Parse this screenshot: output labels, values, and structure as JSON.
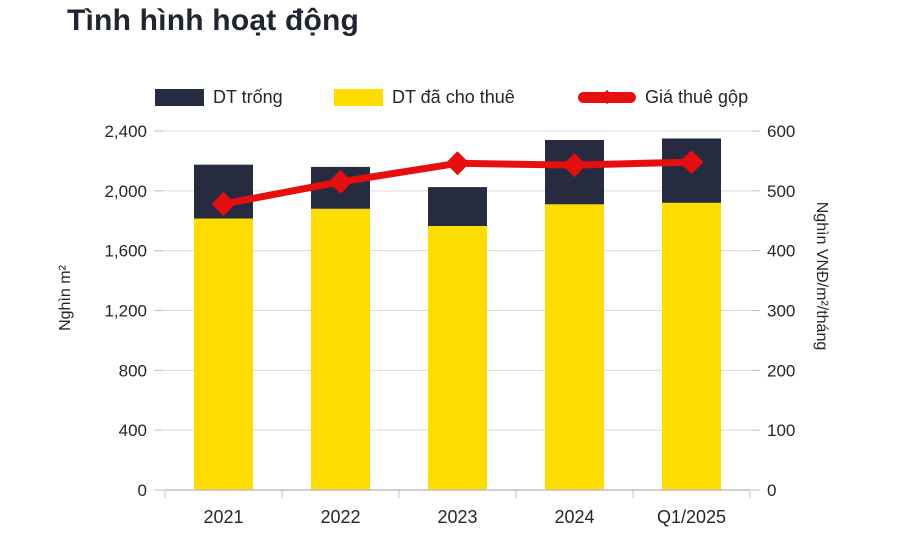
{
  "page": {
    "title": "Tình hình hoạt động"
  },
  "legend": [
    {
      "label": "DT trống",
      "color": "#262B40",
      "marker": "rect"
    },
    {
      "label": "DT đã cho thuê",
      "color": "#FFDD00",
      "marker": "rect"
    },
    {
      "label": "Giá thuê gộp",
      "color": "#E60F0F",
      "marker": "line-diamond"
    }
  ],
  "chart_data": {
    "type": "bar",
    "subtype": "stacked-bars-with-line-overlay",
    "title": "Tình hình hoạt động",
    "categories": [
      "2021",
      "2022",
      "2023",
      "2024",
      "Q1/2025"
    ],
    "series": [
      {
        "name": "DT đã cho thuê",
        "type": "bar",
        "stack": "dt",
        "axis": "left",
        "color": "#FFDD00",
        "values": [
          1815,
          1880,
          1765,
          1910,
          1920
        ]
      },
      {
        "name": "DT trống",
        "type": "bar",
        "stack": "dt",
        "axis": "left",
        "color": "#262B40",
        "values": [
          360,
          280,
          260,
          430,
          430
        ]
      },
      {
        "name": "Giá thuê gộp",
        "type": "line",
        "marker": "diamond",
        "axis": "right",
        "color": "#E60F0F",
        "values": [
          478,
          515,
          546,
          543,
          548
        ]
      }
    ],
    "bar_totals": [
      2175,
      2160,
      2025,
      2340,
      2350
    ],
    "left_axis": {
      "title": "Nghìn m²",
      "min": 0,
      "max": 2400,
      "tick_step": 400,
      "ticks": [
        "0",
        "400",
        "800",
        "1,200",
        "1,600",
        "2,000",
        "2,400"
      ]
    },
    "right_axis": {
      "title": "Nghìn VNĐ/m²/tháng",
      "min": 0,
      "max": 600,
      "tick_step": 100,
      "ticks": [
        "0",
        "100",
        "200",
        "300",
        "400",
        "500",
        "600"
      ]
    },
    "grid": true,
    "legend_position": "top",
    "colors": {
      "vacant": "#262B40",
      "leased": "#FFDD00",
      "rent_line": "#E60F0F",
      "gridline": "#D9D9D9",
      "axis_line": "#BFBFBF",
      "tick_text": "#262626",
      "title_text": "#212431"
    }
  }
}
